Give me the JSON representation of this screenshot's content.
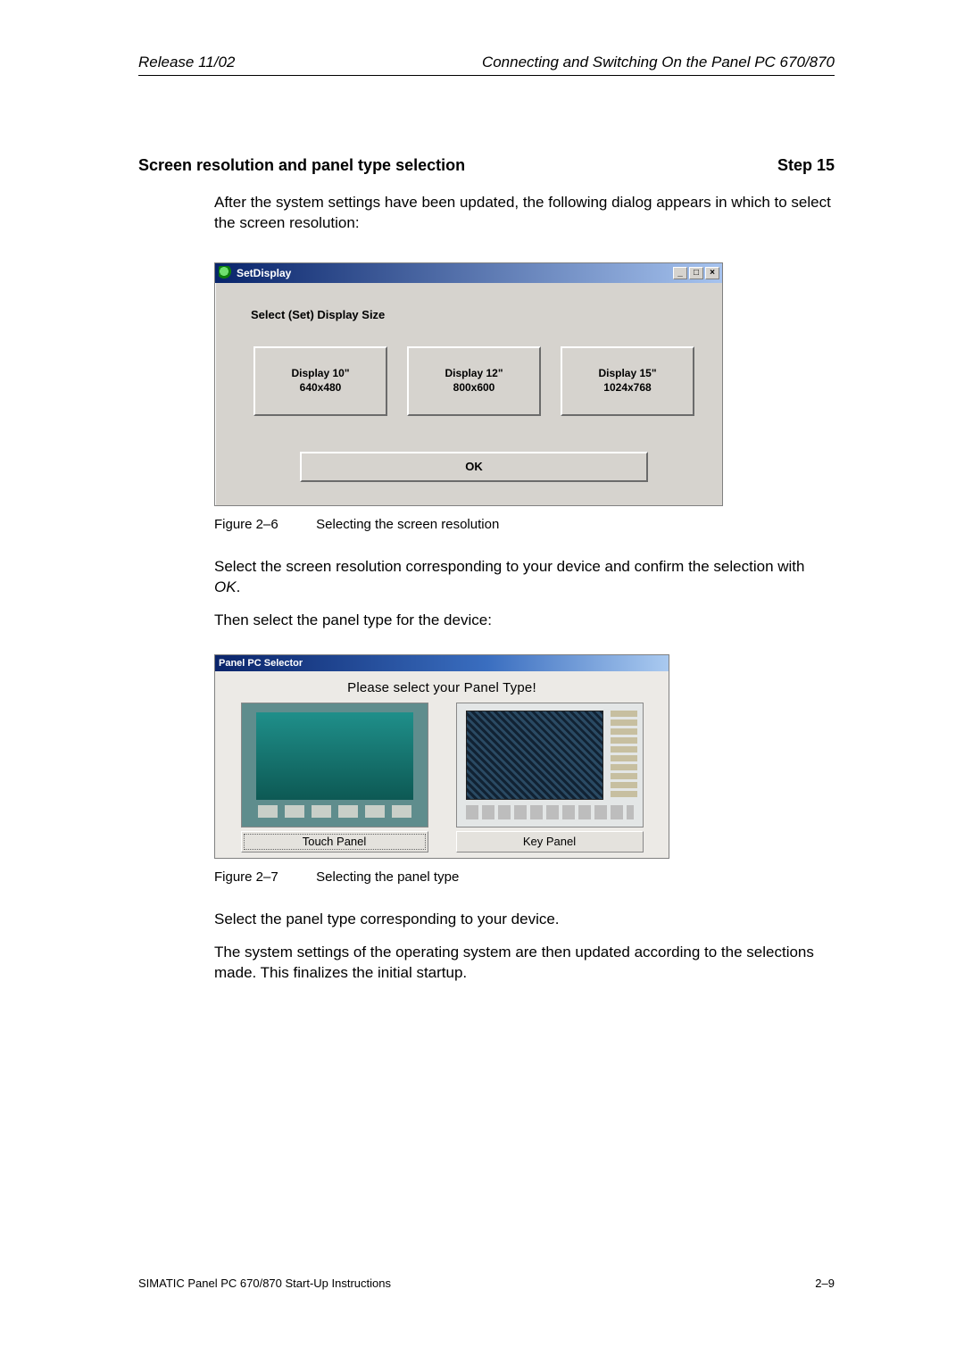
{
  "header": {
    "left": "Release 11/02",
    "right": "Connecting and Switching On the Panel PC 670/870"
  },
  "section": {
    "title": "Screen resolution and panel type selection",
    "step": "Step 15"
  },
  "para1": "After the system settings have been updated, the following dialog appears in which to select the screen resolution:",
  "dlg1": {
    "title": "SetDisplay",
    "winbtns": {
      "min": "_",
      "max": "□",
      "close": "×"
    },
    "label": "Select (Set) Display Size",
    "buttons": [
      {
        "line1": "Display 10\"",
        "line2": "640x480"
      },
      {
        "line1": "Display 12\"",
        "line2": "800x600"
      },
      {
        "line1": "Display 15\"",
        "line2": "1024x768"
      }
    ],
    "ok": "OK"
  },
  "fig1": {
    "label": "Figure 2–6",
    "caption": "Selecting the screen resolution"
  },
  "para2a": "Select the screen resolution corresponding to your device and confirm the selection with ",
  "para2b": "OK",
  "para2c": ".",
  "para3": "Then select the panel type for the device:",
  "dlg2": {
    "title": "Panel PC Selector",
    "headline": "Please select your Panel Type!",
    "touch": "Touch Panel",
    "key": "Key Panel"
  },
  "fig2": {
    "label": "Figure 2–7",
    "caption": "Selecting the panel type"
  },
  "para4": "Select the panel type corresponding to your device.",
  "para5": "The system settings of the operating system are then updated according to the selections made. This finalizes the initial startup.",
  "footer": {
    "left": "SIMATIC Panel PC 670/870 Start-Up Instructions",
    "right": "2–9"
  }
}
